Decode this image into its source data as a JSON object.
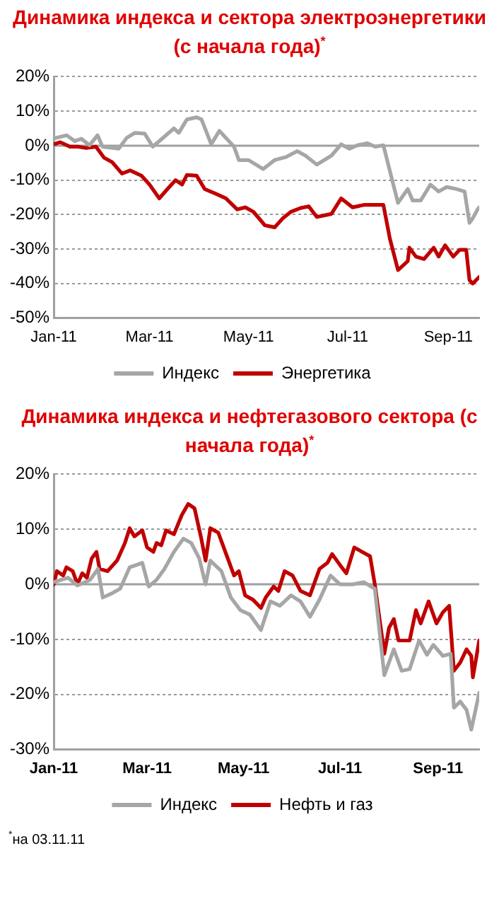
{
  "chart_data": [
    {
      "type": "line",
      "title": "Динамика индекса и сектора электроэнергетики (с начала года)$^{*}$",
      "xlim": [
        "2011-01-01",
        "2011-09-20"
      ],
      "xticks": [
        {
          "value": "2011-01-01",
          "label": "Jan-11"
        },
        {
          "value": "2011-03-01",
          "label": "Mar-11"
        },
        {
          "value": "2011-05-01",
          "label": "May-11"
        },
        {
          "value": "2011-07-01",
          "label": "Jul-11"
        },
        {
          "value": "2011-09-01",
          "label": "Sep-11"
        }
      ],
      "ylim": [
        -50,
        20
      ],
      "yticks": [
        {
          "value": 20,
          "label": "20%"
        },
        {
          "value": 10,
          "label": "10%"
        },
        {
          "value": 0,
          "label": "0%"
        },
        {
          "value": -10,
          "label": "-10%"
        },
        {
          "value": -20,
          "label": "-20%"
        },
        {
          "value": -30,
          "label": "-30%"
        },
        {
          "value": -40,
          "label": "-40%"
        },
        {
          "value": -50,
          "label": "-50%"
        }
      ],
      "grid": "y",
      "legend": "bottom",
      "marker": "none",
      "line_style": "solid",
      "series": [
        {
          "name": "Индекс",
          "color": "#a6a6a6",
          "x": [
            "2011-01-01",
            "2011-01-09",
            "2011-01-14",
            "2011-01-18",
            "2011-01-23",
            "2011-01-28",
            "2011-01-31",
            "2011-02-10",
            "2011-02-15",
            "2011-02-20",
            "2011-02-26",
            "2011-03-03",
            "2011-03-08",
            "2011-03-16",
            "2011-03-19",
            "2011-03-24",
            "2011-03-30",
            "2011-04-02",
            "2011-04-08",
            "2011-04-13",
            "2011-04-22",
            "2011-04-25",
            "2011-05-01",
            "2011-05-10",
            "2011-05-17",
            "2011-05-24",
            "2011-05-31",
            "2011-06-05",
            "2011-06-12",
            "2011-06-21",
            "2011-06-27",
            "2011-07-02",
            "2011-07-07",
            "2011-07-13",
            "2011-07-18",
            "2011-07-23",
            "2011-07-27",
            "2011-08-01",
            "2011-08-07",
            "2011-08-10",
            "2011-08-15",
            "2011-08-21",
            "2011-08-26",
            "2011-08-31",
            "2011-09-06",
            "2011-09-11",
            "2011-09-14",
            "2011-09-16",
            "2011-09-19",
            "2011-09-20"
          ],
          "values": [
            2.1,
            3.0,
            1.3,
            2.0,
            0.1,
            3.0,
            -0.3,
            -0.9,
            2.3,
            3.7,
            3.5,
            -0.3,
            1.7,
            5.0,
            3.7,
            7.6,
            8.2,
            7.6,
            0.4,
            4.3,
            -0.3,
            -4.2,
            -4.2,
            -6.8,
            -4.2,
            -3.3,
            -1.6,
            -2.9,
            -5.5,
            -2.9,
            0.4,
            -0.9,
            0.1,
            0.7,
            -0.3,
            0.1,
            -7.4,
            -16.6,
            -12.6,
            -15.9,
            -15.9,
            -11.3,
            -13.3,
            -12.0,
            -12.6,
            -13.3,
            -22.4,
            -21.1,
            -18.5,
            -17.9
          ]
        },
        {
          "name": "Энергетика",
          "color": "#c00000",
          "x": [
            "2011-01-01",
            "2011-01-05",
            "2011-01-11",
            "2011-01-16",
            "2011-01-21",
            "2011-01-27",
            "2011-02-01",
            "2011-02-06",
            "2011-02-12",
            "2011-02-17",
            "2011-02-24",
            "2011-03-01",
            "2011-03-07",
            "2011-03-12",
            "2011-03-17",
            "2011-03-21",
            "2011-03-24",
            "2011-03-30",
            "2011-04-04",
            "2011-04-11",
            "2011-04-17",
            "2011-04-24",
            "2011-04-29",
            "2011-05-04",
            "2011-05-11",
            "2011-05-17",
            "2011-05-22",
            "2011-05-27",
            "2011-06-02",
            "2011-06-07",
            "2011-06-12",
            "2011-06-21",
            "2011-06-27",
            "2011-07-04",
            "2011-07-11",
            "2011-07-16",
            "2011-07-23",
            "2011-07-27",
            "2011-08-01",
            "2011-08-07",
            "2011-08-08",
            "2011-08-12",
            "2011-08-17",
            "2011-08-23",
            "2011-08-26",
            "2011-08-30",
            "2011-09-04",
            "2011-09-08",
            "2011-09-12",
            "2011-09-14",
            "2011-09-16",
            "2011-09-20"
          ],
          "values": [
            0.4,
            1.0,
            -0.3,
            -0.3,
            -0.7,
            -0.3,
            -3.5,
            -4.8,
            -8.1,
            -7.2,
            -8.7,
            -11.3,
            -15.3,
            -12.6,
            -10.0,
            -11.3,
            -8.5,
            -8.7,
            -12.6,
            -14.0,
            -15.3,
            -18.5,
            -17.9,
            -19.2,
            -23.1,
            -23.7,
            -21.1,
            -19.2,
            -18.1,
            -17.6,
            -20.7,
            -19.8,
            -15.3,
            -17.9,
            -17.2,
            -17.2,
            -17.2,
            -27.0,
            -36.1,
            -33.5,
            -29.6,
            -32.2,
            -32.9,
            -29.6,
            -32.2,
            -28.9,
            -32.2,
            -30.2,
            -30.2,
            -39.0,
            -40.0,
            -38.1
          ]
        }
      ]
    },
    {
      "type": "line",
      "title": "Динамика индекса и нефтегазового сектора (с начала года)$^{*}$",
      "xlim": [
        "2011-01-01",
        "2011-09-27"
      ],
      "xticks": [
        {
          "value": "2011-01-01",
          "label": "Jan-11"
        },
        {
          "value": "2011-03-01",
          "label": "Mar-11"
        },
        {
          "value": "2011-05-01",
          "label": "May-11"
        },
        {
          "value": "2011-07-01",
          "label": "Jul-11"
        },
        {
          "value": "2011-09-01",
          "label": "Sep-11"
        }
      ],
      "ylim": [
        -30,
        20
      ],
      "yticks": [
        {
          "value": 20,
          "label": "20%"
        },
        {
          "value": 10,
          "label": "10%"
        },
        {
          "value": 0,
          "label": "0%"
        },
        {
          "value": -10,
          "label": "-10%"
        },
        {
          "value": -20,
          "label": "-20%"
        },
        {
          "value": -30,
          "label": "-30%"
        }
      ],
      "grid": "y",
      "legend": "bottom",
      "marker": "none",
      "line_style": "solid",
      "annotations": [
        "$^{*}$на 03.11.11"
      ],
      "series": [
        {
          "name": "Индекс",
          "color": "#a6a6a6",
          "x": [
            "2011-01-01",
            "2011-01-10",
            "2011-01-16",
            "2011-01-24",
            "2011-01-29",
            "2011-02-01",
            "2011-02-07",
            "2011-02-12",
            "2011-02-18",
            "2011-02-26",
            "2011-03-02",
            "2011-03-07",
            "2011-03-12",
            "2011-03-18",
            "2011-03-24",
            "2011-03-29",
            "2011-04-03",
            "2011-04-07",
            "2011-04-10",
            "2011-04-17",
            "2011-04-23",
            "2011-04-29",
            "2011-05-05",
            "2011-05-12",
            "2011-05-18",
            "2011-05-24",
            "2011-05-31",
            "2011-06-06",
            "2011-06-12",
            "2011-06-18",
            "2011-06-25",
            "2011-07-01",
            "2011-07-09",
            "2011-07-16",
            "2011-07-23",
            "2011-07-29",
            "2011-08-04",
            "2011-08-09",
            "2011-08-14",
            "2011-08-20",
            "2011-08-25",
            "2011-08-29",
            "2011-09-04",
            "2011-09-09",
            "2011-09-11",
            "2011-09-15",
            "2011-09-19",
            "2011-09-22",
            "2011-09-27"
          ],
          "values": [
            0.4,
            1.2,
            -0.2,
            0.8,
            2.8,
            -2.4,
            -1.6,
            -0.8,
            3.1,
            3.9,
            -0.4,
            0.8,
            2.8,
            5.9,
            8.3,
            7.5,
            4.7,
            0,
            4.3,
            2.4,
            -2.4,
            -4.7,
            -5.5,
            -8.3,
            -3.1,
            -3.9,
            -2.0,
            -3.1,
            -5.9,
            -2.8,
            1.6,
            0,
            0,
            0.4,
            -0.8,
            -16.5,
            -11.8,
            -15.7,
            -15.4,
            -10.2,
            -12.8,
            -11.0,
            -13.0,
            -12.6,
            -22.4,
            -21.3,
            -22.8,
            -26.4,
            -19.7
          ]
        },
        {
          "name": "Нефть и газ",
          "color": "#c00000",
          "x": [
            "2011-01-01",
            "2011-01-03",
            "2011-01-07",
            "2011-01-09",
            "2011-01-13",
            "2011-01-16",
            "2011-01-19",
            "2011-01-22",
            "2011-01-25",
            "2011-01-28",
            "2011-01-30",
            "2011-02-04",
            "2011-02-10",
            "2011-02-15",
            "2011-02-18",
            "2011-02-21",
            "2011-02-26",
            "2011-03-01",
            "2011-03-05",
            "2011-03-07",
            "2011-03-10",
            "2011-03-13",
            "2011-03-18",
            "2011-03-23",
            "2011-03-27",
            "2011-03-31",
            "2011-04-04",
            "2011-04-07",
            "2011-04-10",
            "2011-04-15",
            "2011-04-20",
            "2011-04-25",
            "2011-04-28",
            "2011-05-02",
            "2011-05-07",
            "2011-05-12",
            "2011-05-15",
            "2011-05-20",
            "2011-05-23",
            "2011-05-27",
            "2011-06-01",
            "2011-06-06",
            "2011-06-12",
            "2011-06-18",
            "2011-06-23",
            "2011-06-26",
            "2011-07-01",
            "2011-07-05",
            "2011-07-10",
            "2011-07-15",
            "2011-07-20",
            "2011-07-23",
            "2011-07-29",
            "2011-08-01",
            "2011-08-04",
            "2011-08-07",
            "2011-08-14",
            "2011-08-18",
            "2011-08-21",
            "2011-08-26",
            "2011-08-31",
            "2011-09-04",
            "2011-09-08",
            "2011-09-11",
            "2011-09-15",
            "2011-09-19",
            "2011-09-22",
            "2011-09-23",
            "2011-09-27"
          ],
          "values": [
            0,
            2.4,
            1.6,
            3.1,
            2.4,
            0,
            2.0,
            1.2,
            4.7,
            5.9,
            2.8,
            2.4,
            4.3,
            7.5,
            10.2,
            8.7,
            9.8,
            6.7,
            5.9,
            7.5,
            7.1,
            9.8,
            9.1,
            12.6,
            14.6,
            13.8,
            8.7,
            4.3,
            10.2,
            9.4,
            5.5,
            1.6,
            2.4,
            -2.0,
            -2.8,
            -4.3,
            -2.4,
            -0.4,
            -1.2,
            2.4,
            1.6,
            -1.2,
            -2.0,
            2.8,
            3.9,
            5.5,
            3.5,
            2.0,
            6.7,
            5.9,
            5.1,
            0,
            -12.6,
            -7.9,
            -6.3,
            -10.2,
            -10.2,
            -4.7,
            -7.1,
            -3.1,
            -7.1,
            -5.1,
            -3.9,
            -15.7,
            -14.2,
            -11.8,
            -13.0,
            -16.9,
            -10.2
          ]
        }
      ]
    }
  ]
}
